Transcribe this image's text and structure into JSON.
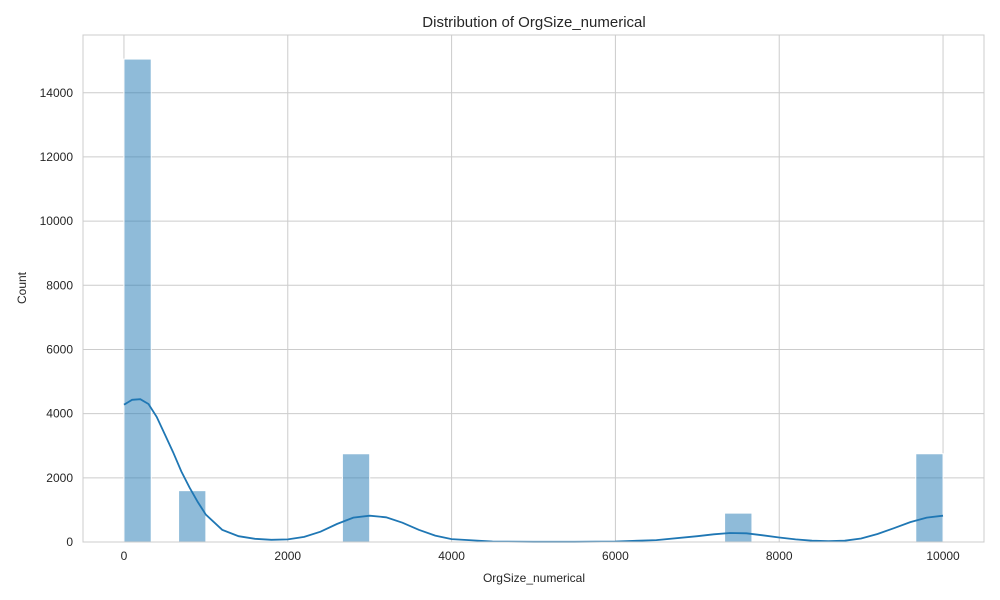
{
  "chart_data": {
    "type": "bar",
    "title": "Distribution of OrgSize_numerical",
    "xlabel": "OrgSize_numerical",
    "ylabel": "Count",
    "xlim": [
      -500,
      10500
    ],
    "ylim": [
      0,
      15800
    ],
    "xticks": [
      0,
      2000,
      4000,
      6000,
      8000,
      10000
    ],
    "yticks": [
      0,
      2000,
      4000,
      6000,
      8000,
      10000,
      12000,
      14000
    ],
    "grid": true,
    "bar_color": "#1f77b4",
    "bins": [
      {
        "x0": 0,
        "x1": 333,
        "count": 15050
      },
      {
        "x0": 667,
        "x1": 1000,
        "count": 1600
      },
      {
        "x0": 2667,
        "x1": 3000,
        "count": 2750
      },
      {
        "x0": 7333,
        "x1": 7667,
        "count": 900
      },
      {
        "x0": 9667,
        "x1": 10000,
        "count": 2750
      }
    ],
    "kde": {
      "name": "KDE",
      "color": "#1f77b4",
      "x": [
        0,
        100,
        200,
        300,
        400,
        500,
        600,
        700,
        800,
        900,
        1000,
        1200,
        1400,
        1600,
        1800,
        2000,
        2200,
        2400,
        2600,
        2800,
        3000,
        3200,
        3400,
        3600,
        3800,
        4000,
        4500,
        5000,
        5500,
        6000,
        6500,
        7000,
        7200,
        7400,
        7600,
        7800,
        8000,
        8200,
        8400,
        8600,
        8800,
        9000,
        9200,
        9400,
        9600,
        9800,
        10000
      ],
      "y": [
        4280,
        4430,
        4450,
        4300,
        3900,
        3350,
        2800,
        2200,
        1700,
        1250,
        850,
        380,
        180,
        100,
        70,
        80,
        160,
        320,
        560,
        760,
        820,
        770,
        600,
        380,
        200,
        90,
        15,
        5,
        5,
        15,
        60,
        180,
        240,
        280,
        270,
        210,
        140,
        80,
        40,
        25,
        40,
        110,
        250,
        430,
        620,
        760,
        820
      ]
    }
  }
}
